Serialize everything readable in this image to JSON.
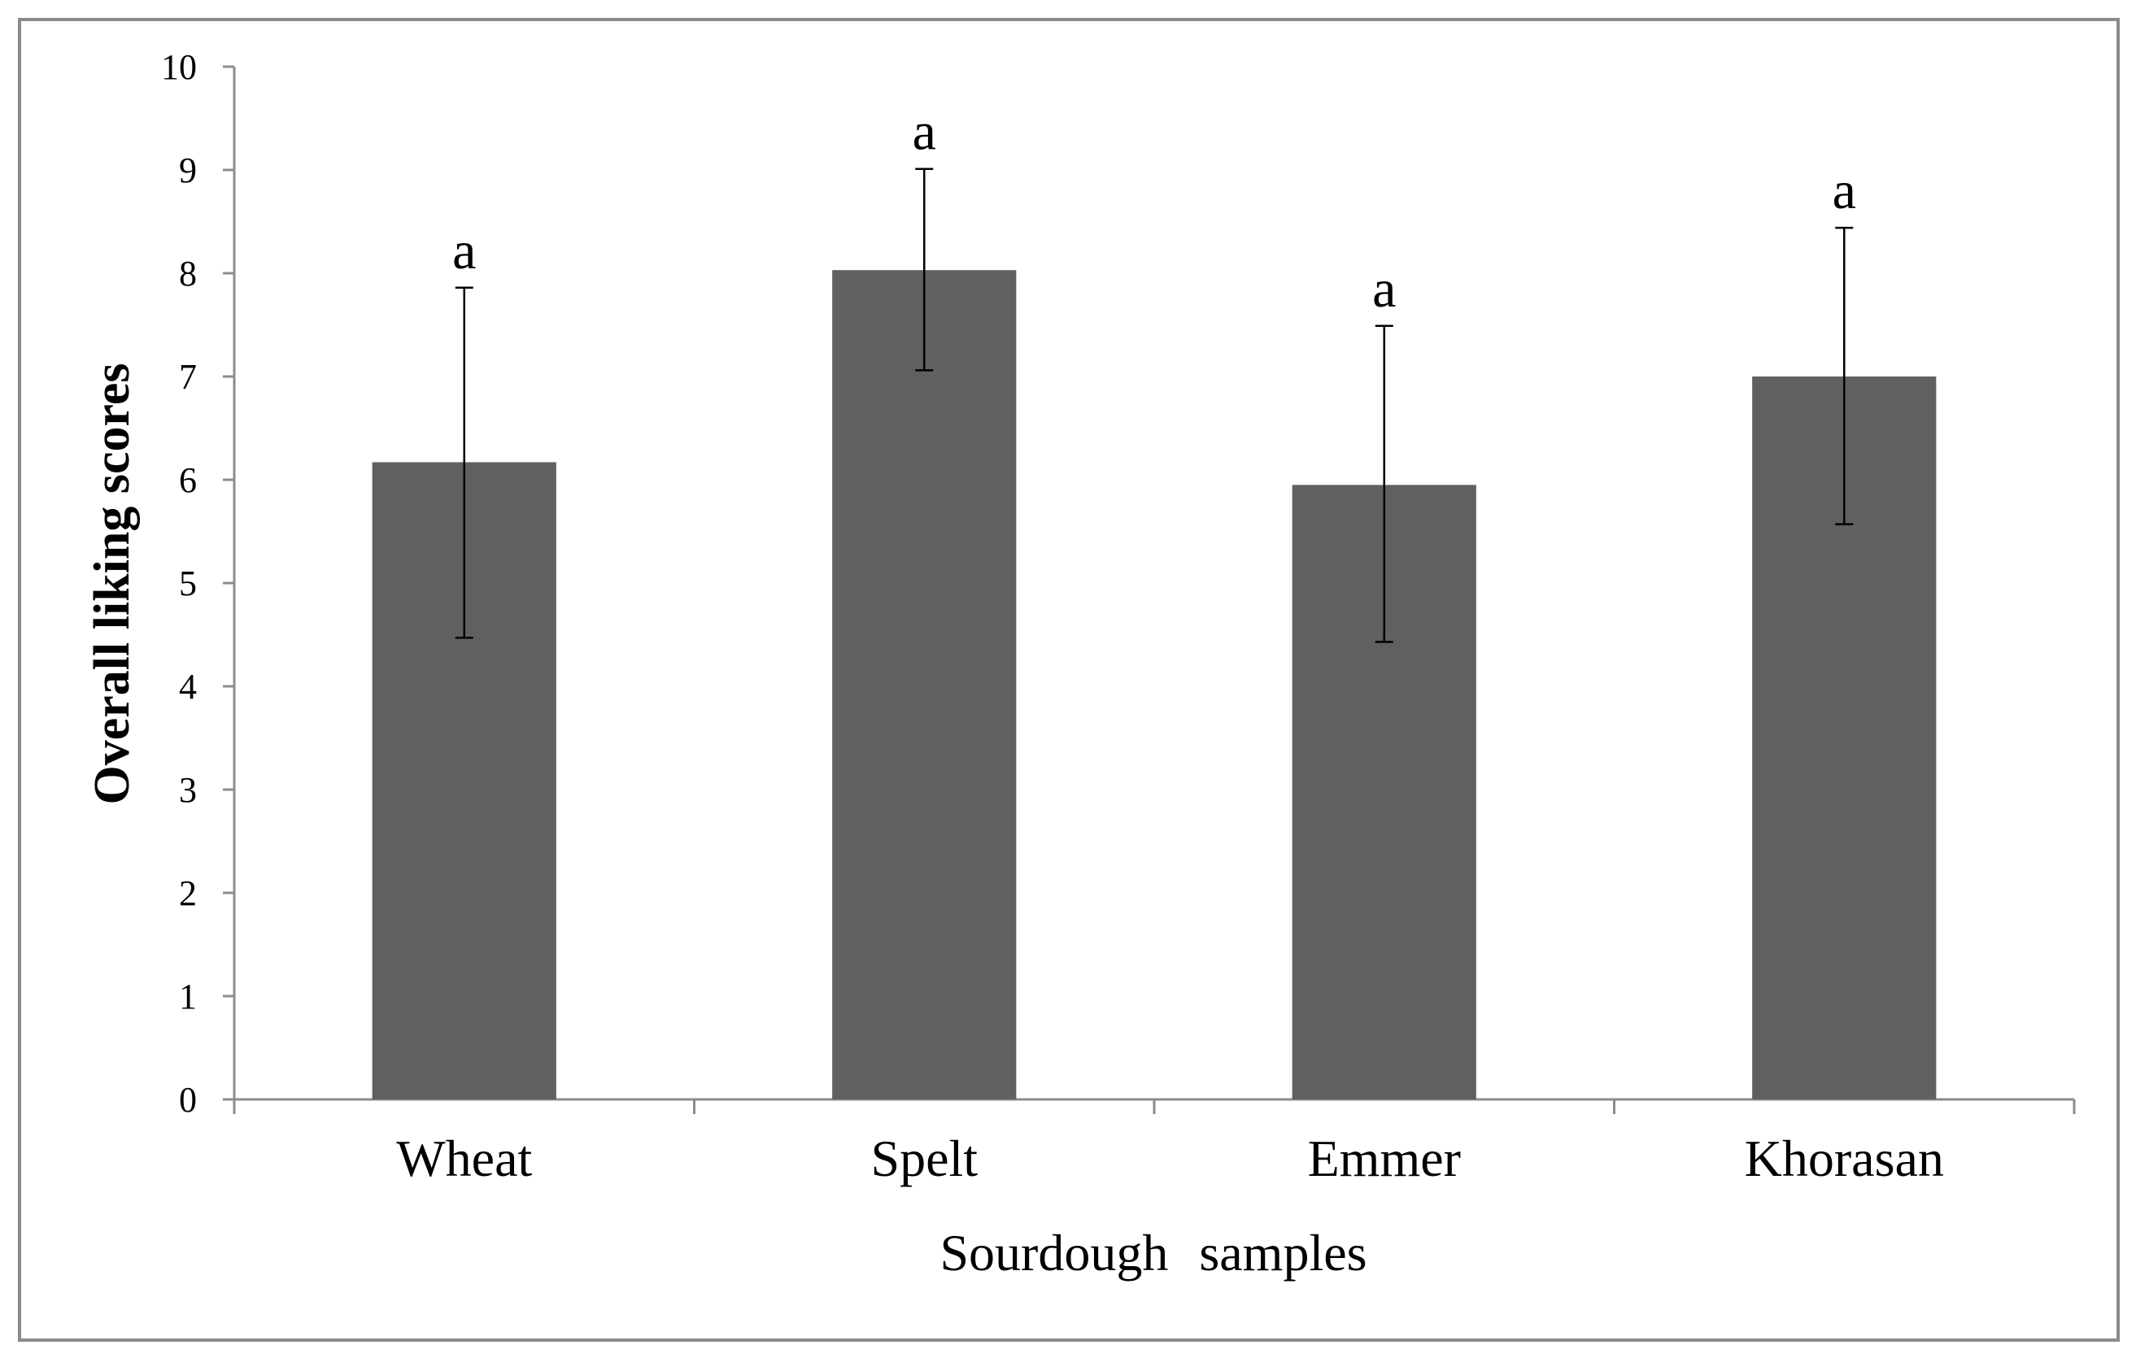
{
  "chart_data": {
    "type": "bar",
    "title": "",
    "xlabel": "Sourdough  samples",
    "ylabel": "Overall liking scores",
    "categories": [
      "Wheat",
      "Spelt",
      "Emmer",
      "Khorasan"
    ],
    "values": [
      6.17,
      8.03,
      5.95,
      7.0
    ],
    "error_low": [
      4.47,
      7.06,
      4.43,
      5.57
    ],
    "error_high": [
      7.86,
      9.01,
      7.49,
      8.44
    ],
    "annotations": [
      "a",
      "a",
      "a",
      "a"
    ],
    "ylim": [
      0,
      10
    ],
    "yticks": [
      "0",
      "1",
      "2",
      "3",
      "4",
      "5",
      "6",
      "7",
      "8",
      "9",
      "10"
    ],
    "grid": false,
    "legend": "none",
    "colors": {
      "bar": "#606060",
      "axis": "#8c8c8c",
      "frame": "#8a8a8a",
      "error": "#000000"
    }
  }
}
